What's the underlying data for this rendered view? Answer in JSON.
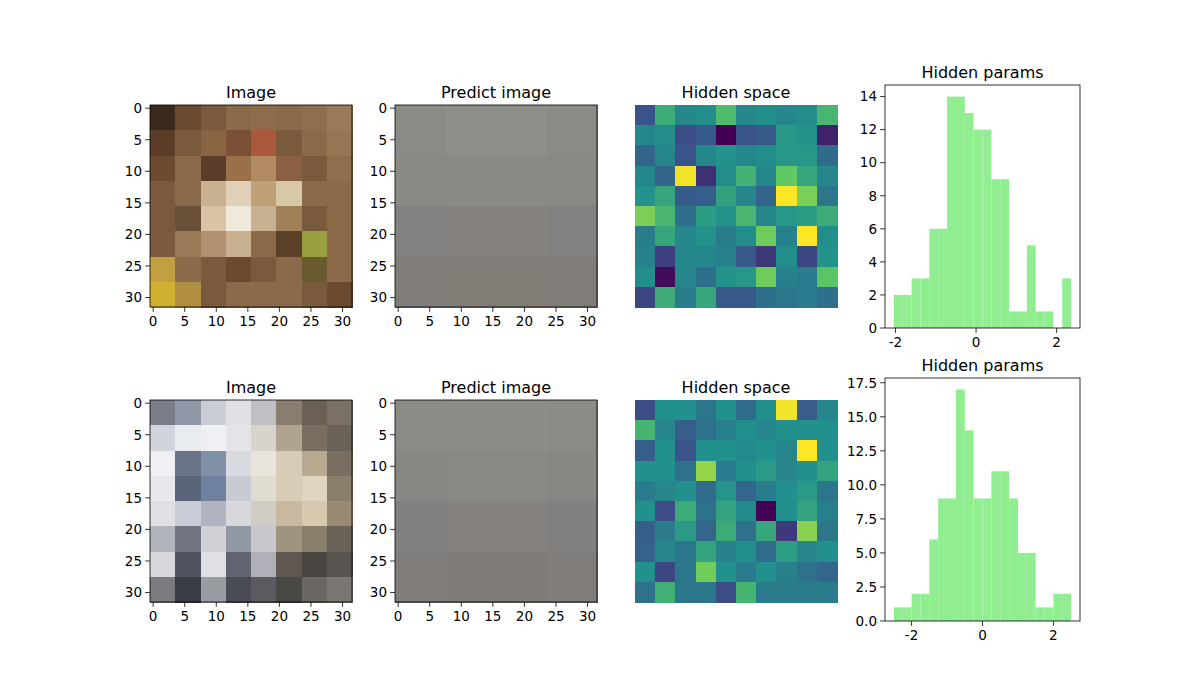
{
  "chart_data": [
    {
      "type": "image",
      "title": "Image",
      "xlim": [
        -0.5,
        31.5
      ],
      "ylim": [
        31.5,
        -0.5
      ],
      "xticks": [
        0,
        5,
        10,
        15,
        20,
        25,
        30
      ],
      "yticks": [
        0,
        5,
        10,
        15,
        20,
        25,
        30
      ],
      "cells": [
        [
          "#3a2a1e",
          "#6a4a30",
          "#7a5a3c",
          "#8a6a48",
          "#8e6c4a",
          "#8a6a48",
          "#8e6e4c",
          "#9a7a56"
        ],
        [
          "#5a3c28",
          "#7a5a3c",
          "#8a6440",
          "#7a5036",
          "#a85a3a",
          "#7a5a3c",
          "#8a6a48",
          "#957552"
        ],
        [
          "#6a4a30",
          "#8a6a48",
          "#5a3c28",
          "#9a7048",
          "#b08a60",
          "#8a6040",
          "#7a5a3c",
          "#8e6e4c"
        ],
        [
          "#7a5a3c",
          "#8a6a48",
          "#c8b090",
          "#e0d0b8",
          "#c0a078",
          "#d8c8a8",
          "#8a6a48",
          "#8a6a48"
        ],
        [
          "#7a5a3c",
          "#6a5038",
          "#d8c4a4",
          "#f0e8d8",
          "#c8b090",
          "#a08058",
          "#7a5a3c",
          "#8a6a48"
        ],
        [
          "#7a5a3c",
          "#9a7a56",
          "#b09070",
          "#c8b090",
          "#8a6a48",
          "#5a4028",
          "#9aa040",
          "#8a6a48"
        ],
        [
          "#c0a040",
          "#8a6a48",
          "#7a5a3c",
          "#6a4a30",
          "#7a5a3c",
          "#8a6a48",
          "#6a5a30",
          "#8a6a48"
        ],
        [
          "#d0b030",
          "#b09040",
          "#7a5a3c",
          "#8a6a48",
          "#8a6a48",
          "#8a6a48",
          "#7a5a3c",
          "#6a4a30"
        ]
      ]
    },
    {
      "type": "image",
      "title": "Predict image",
      "xlim": [
        -0.5,
        31.5
      ],
      "ylim": [
        31.5,
        -0.5
      ],
      "xticks": [
        0,
        5,
        10,
        15,
        20,
        25,
        30
      ],
      "yticks": [
        0,
        5,
        10,
        15,
        20,
        25,
        30
      ],
      "cells": [
        [
          "#8a8c86",
          "#8c8e88",
          "#8c8e88",
          "#8a8c86"
        ],
        [
          "#888a84",
          "#8a8a84",
          "#8a8a84",
          "#888a84"
        ],
        [
          "#848280",
          "#86827e",
          "#86827e",
          "#848280"
        ],
        [
          "#807c78",
          "#827c76",
          "#827c76",
          "#807c78"
        ]
      ]
    },
    {
      "type": "heatmap",
      "title": "Hidden space",
      "color": "viridis",
      "tick_labels": false,
      "clim": [
        -2.05,
        2.4
      ],
      "cells": [
        [
          -0.9,
          0.7,
          0.0,
          0.1,
          1.0,
          0.0,
          0.1,
          0.0,
          0.1,
          0.9
        ],
        [
          0.0,
          0.1,
          -1.0,
          -0.8,
          -2.05,
          -0.9,
          -0.8,
          0.3,
          0.2,
          -1.6
        ],
        [
          -0.6,
          0.0,
          -0.9,
          0.0,
          0.2,
          0.0,
          0.1,
          0.3,
          0.3,
          -0.5
        ],
        [
          0.0,
          -0.6,
          2.3,
          -1.4,
          0.1,
          0.8,
          0.0,
          1.3,
          0.6,
          0.0
        ],
        [
          0.2,
          0.6,
          -0.8,
          -0.7,
          0.5,
          0.0,
          -0.6,
          2.4,
          1.5,
          -0.3
        ],
        [
          1.5,
          0.9,
          -0.4,
          0.4,
          0.2,
          0.9,
          0.0,
          0.3,
          0.4,
          0.7
        ],
        [
          -0.2,
          0.6,
          0.0,
          0.2,
          -0.2,
          0.1,
          1.4,
          -0.1,
          2.4,
          0.1
        ],
        [
          -0.1,
          -1.2,
          0.0,
          0.0,
          -0.1,
          -0.8,
          -1.3,
          0.1,
          -1.1,
          0.2
        ],
        [
          0.1,
          -1.9,
          0.0,
          -0.4,
          0.2,
          0.3,
          1.4,
          -0.1,
          -0.2,
          1.2
        ],
        [
          -1.1,
          0.7,
          -0.2,
          0.6,
          -0.8,
          -0.8,
          -0.4,
          -0.3,
          -0.2,
          -0.4
        ]
      ]
    },
    {
      "type": "histogram",
      "title": "Hidden params",
      "color": "#90ee90",
      "bins": [
        -2.04,
        -1.82,
        -1.6,
        -1.38,
        -1.16,
        -0.94,
        -0.72,
        -0.5,
        -0.28,
        -0.06,
        0.16,
        0.38,
        0.6,
        0.82,
        1.04,
        1.26,
        1.48,
        1.7,
        1.92,
        2.14,
        2.36
      ],
      "counts": [
        2,
        2,
        3,
        3,
        6,
        6,
        14,
        14,
        13,
        12,
        12,
        9,
        9,
        1,
        1,
        5,
        1,
        1,
        0,
        3
      ],
      "xlim": [
        -2.26,
        2.58
      ],
      "ylim": [
        0,
        14.7
      ],
      "xticks": [
        -2,
        0,
        2
      ],
      "yticks": [
        0,
        2,
        4,
        6,
        8,
        10,
        12,
        14
      ]
    },
    {
      "type": "image",
      "title": "Image",
      "xlim": [
        -0.5,
        31.5
      ],
      "ylim": [
        31.5,
        -0.5
      ],
      "xticks": [
        0,
        5,
        10,
        15,
        20,
        25,
        30
      ],
      "yticks": [
        0,
        5,
        10,
        15,
        20,
        25,
        30
      ],
      "cells": [
        [
          "#7a7e88",
          "#9098a8",
          "#c8ccd4",
          "#e0e0e4",
          "#c0c0c4",
          "#8a7e70",
          "#6a6054",
          "#7a7066"
        ],
        [
          "#d0d4dc",
          "#e8ecf0",
          "#f0f0f4",
          "#e4e4e8",
          "#d8d4cc",
          "#b0a490",
          "#7a6e60",
          "#6a6256"
        ],
        [
          "#f0f0f4",
          "#6a7488",
          "#8090a8",
          "#d8dae0",
          "#e8e4dc",
          "#d8ccb8",
          "#b8a890",
          "#7a6e60"
        ],
        [
          "#e8e8ec",
          "#5a6478",
          "#7080a0",
          "#c8cad4",
          "#e0dcd0",
          "#d8ccb4",
          "#e0d4c0",
          "#8a7e6c"
        ],
        [
          "#e0e0e4",
          "#c8ccd4",
          "#b0b4c0",
          "#d8d8dc",
          "#d0ccc4",
          "#c8b8a0",
          "#d8c8b0",
          "#9a8a74"
        ],
        [
          "#b0b4bc",
          "#707480",
          "#d0d0d4",
          "#9098a4",
          "#c8c8cc",
          "#a09480",
          "#8a7e6c",
          "#6a6256"
        ],
        [
          "#d8d8dc",
          "#505460",
          "#e0e0e4",
          "#606470",
          "#b0b0b8",
          "#605850",
          "#4a4440",
          "#5a5450"
        ],
        [
          "#7a7a80",
          "#3a3c44",
          "#9a9ca4",
          "#4a4c54",
          "#5a5a60",
          "#4a4844",
          "#6a6660",
          "#7a7670"
        ]
      ]
    },
    {
      "type": "image",
      "title": "Predict image",
      "xlim": [
        -0.5,
        31.5
      ],
      "ylim": [
        31.5,
        -0.5
      ],
      "xticks": [
        0,
        5,
        10,
        15,
        20,
        25,
        30
      ],
      "yticks": [
        0,
        5,
        10,
        15,
        20,
        25,
        30
      ],
      "cells": [
        [
          "#8a8c87",
          "#8b8d88",
          "#8b8d88",
          "#8a8c87"
        ],
        [
          "#878884",
          "#888984",
          "#888984",
          "#878884"
        ],
        [
          "#83817f",
          "#84817e",
          "#84817e",
          "#83817f"
        ],
        [
          "#7f7c79",
          "#807b77",
          "#807b77",
          "#7f7c79"
        ]
      ]
    },
    {
      "type": "heatmap",
      "title": "Hidden space",
      "color": "viridis",
      "tick_labels": false,
      "clim": [
        -2.45,
        2.5
      ],
      "cells": [
        [
          -1.3,
          0.0,
          0.0,
          -0.5,
          0.0,
          -0.7,
          0.0,
          2.4,
          -1.0,
          -0.2
        ],
        [
          0.8,
          -0.2,
          -1.0,
          -0.6,
          -0.3,
          0.0,
          -0.2,
          0.0,
          0.0,
          0.0
        ],
        [
          -1.0,
          0.0,
          -1.2,
          0.0,
          0.0,
          -0.1,
          0.0,
          -0.2,
          2.5,
          0.0
        ],
        [
          0.0,
          0.0,
          -0.6,
          1.7,
          -0.4,
          0.0,
          0.2,
          -0.2,
          0.0,
          0.4
        ],
        [
          -0.4,
          -0.2,
          0.0,
          -0.7,
          0.1,
          -0.8,
          -0.4,
          0.0,
          0.2,
          -0.5
        ],
        [
          0.0,
          -1.3,
          0.6,
          -0.6,
          0.4,
          -0.1,
          -2.45,
          0.0,
          0.4,
          -0.3
        ],
        [
          -1.0,
          -0.4,
          0.2,
          -0.8,
          0.6,
          -0.6,
          0.5,
          -1.6,
          1.6,
          -0.5
        ],
        [
          -0.9,
          -0.2,
          -0.5,
          0.4,
          -0.3,
          0.0,
          -0.7,
          0.3,
          -0.2,
          0.0
        ],
        [
          0.0,
          -1.4,
          -0.5,
          1.4,
          0.0,
          -0.4,
          0.0,
          -0.3,
          -0.6,
          -0.8
        ],
        [
          -0.6,
          0.7,
          -0.5,
          -0.5,
          -1.3,
          0.8,
          -0.4,
          -0.4,
          -0.4,
          -0.4
        ]
      ]
    },
    {
      "type": "histogram",
      "title": "Hidden params",
      "color": "#90ee90",
      "bins": [
        -2.5,
        -2.25,
        -2.0,
        -1.75,
        -1.5,
        -1.25,
        -1.0,
        -0.75,
        -0.5,
        -0.25,
        0.0,
        0.25,
        0.5,
        0.75,
        1.0,
        1.25,
        1.5,
        1.75,
        2.0,
        2.25,
        2.5
      ],
      "counts": [
        1,
        1,
        2,
        2,
        6,
        9,
        9,
        17,
        14,
        9,
        9,
        11,
        11,
        9,
        5,
        5,
        1,
        1,
        2,
        2
      ],
      "xlim": [
        -2.75,
        2.75
      ],
      "ylim": [
        0,
        17.85
      ],
      "xticks": [
        -2,
        0,
        2
      ],
      "yticks": [
        {
          "value": 0.0,
          "label": "0.0"
        },
        {
          "value": 2.5,
          "label": "2.5"
        },
        {
          "value": 5,
          "label": "5.0"
        },
        {
          "value": 7.5,
          "label": "7.5"
        },
        {
          "value": 10,
          "label": "10.0"
        },
        {
          "value": 12.5,
          "label": "12.5"
        },
        {
          "value": 15,
          "label": "15.0"
        },
        {
          "value": 17.5,
          "label": "17.5"
        }
      ]
    }
  ]
}
